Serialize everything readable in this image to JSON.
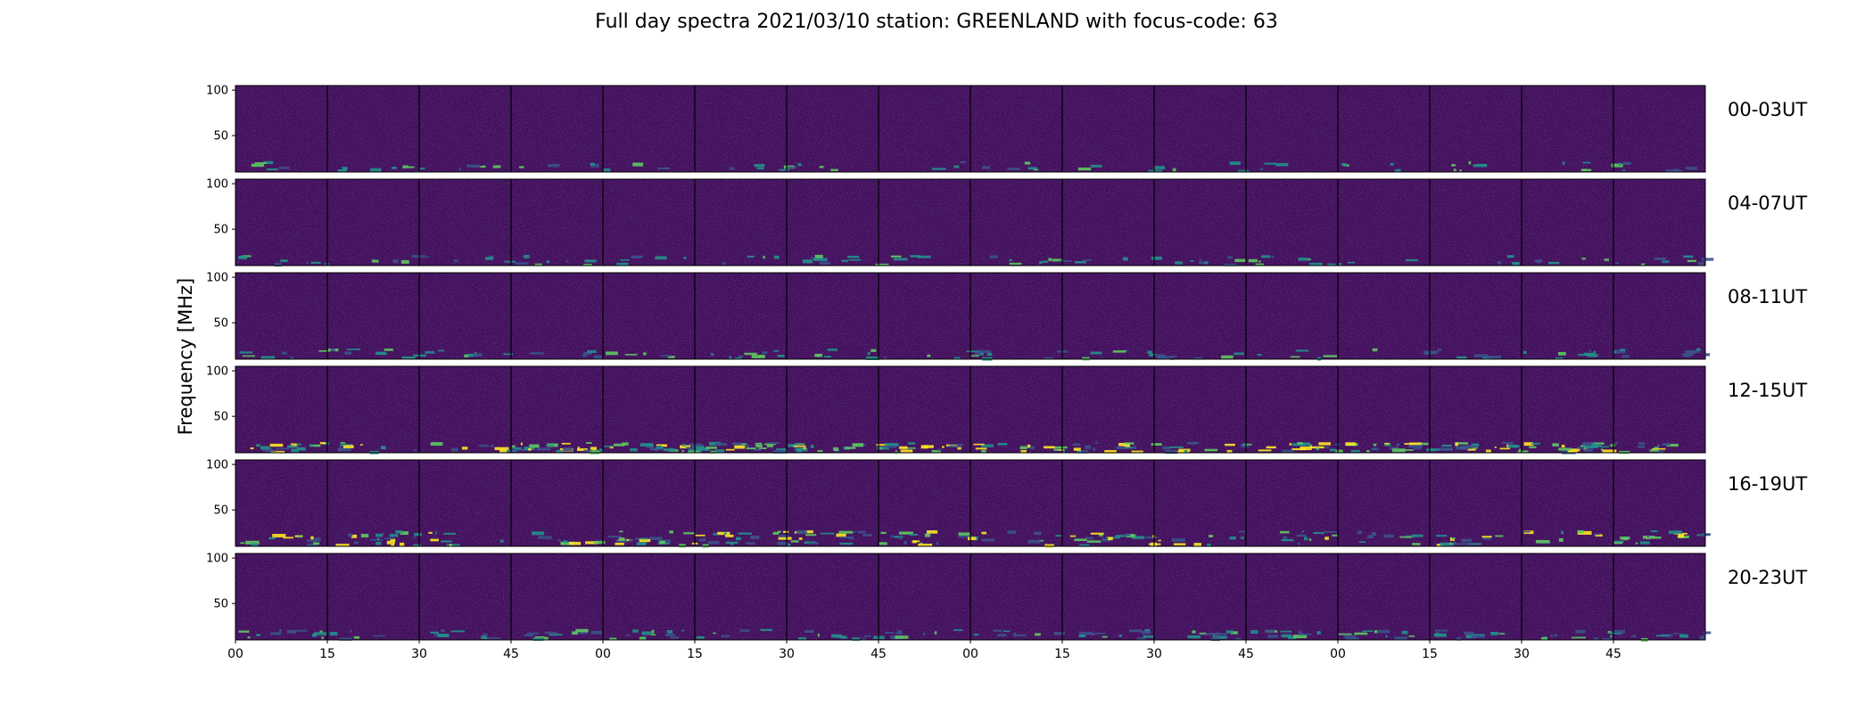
{
  "chart_data": {
    "type": "heatmap",
    "title": "Full day spectra 2021/03/10 station: GREENLAND with focus-code: 63",
    "ylabel": "Frequency [MHz]",
    "yticks": [
      50,
      100
    ],
    "ylim": [
      10,
      105
    ],
    "xticks": [
      "00",
      "15",
      "30",
      "45",
      "00",
      "15",
      "30",
      "45",
      "00",
      "15",
      "30",
      "45",
      "00",
      "15",
      "30",
      "45"
    ],
    "row_labels": [
      "00-03UT",
      "04-07UT",
      "08-11UT",
      "12-15UT",
      "16-19UT",
      "20-23UT"
    ],
    "panels_per_row": 16,
    "colormap": [
      "#440154",
      "#3b528b",
      "#21918c",
      "#5ec962",
      "#fde725"
    ],
    "background_color": "#45105e"
  }
}
